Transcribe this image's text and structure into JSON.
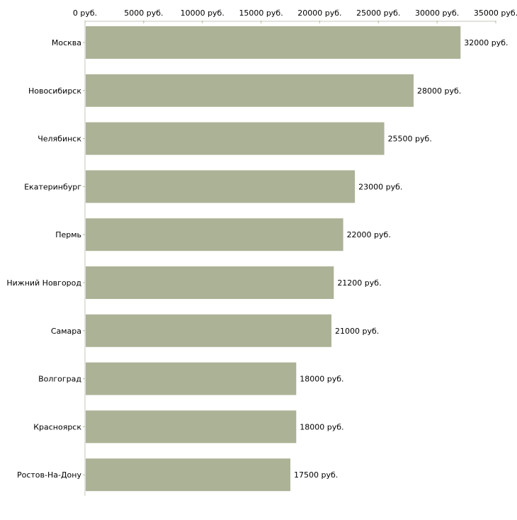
{
  "chart_data": {
    "type": "bar",
    "orientation": "horizontal",
    "title": "",
    "xlabel": "",
    "ylabel": "",
    "unit_suffix": " руб.",
    "xlim": [
      0,
      35000
    ],
    "x_ticks": [
      0,
      5000,
      10000,
      15000,
      20000,
      25000,
      30000,
      35000
    ],
    "x_tick_labels": [
      "0 руб.",
      "5000 руб.",
      "10000 руб.",
      "15000 руб.",
      "20000 руб.",
      "25000 руб.",
      "30000 руб.",
      "35000 руб."
    ],
    "categories": [
      "Москва",
      "Новосибирск",
      "Челябинск",
      "Екатеринбург",
      "Пермь",
      "Нижний Новгород",
      "Самара",
      "Волгоград",
      "Красноярск",
      "Ростов-На-Дону"
    ],
    "values": [
      32000,
      28000,
      25500,
      23000,
      22000,
      21200,
      21000,
      18000,
      18000,
      17500
    ],
    "value_labels": [
      "32000 руб.",
      "28000 руб.",
      "25500 руб.",
      "23000 руб.",
      "22000 руб.",
      "21200 руб.",
      "21000 руб.",
      "18000 руб.",
      "18000 руб.",
      "17500 руб."
    ],
    "grid": false,
    "legend": "none",
    "colors": {
      "bar": "#acb296",
      "axis": "#c4c4bc",
      "tick": "#b8bc98"
    }
  }
}
